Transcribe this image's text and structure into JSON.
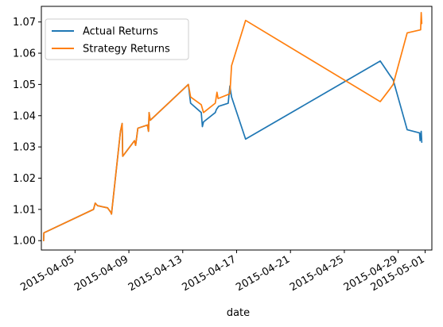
{
  "chart_data": {
    "type": "line",
    "title": "",
    "xlabel": "date",
    "ylabel": "",
    "x_ticks": [
      "2015-04-05",
      "2015-04-09",
      "2015-04-13",
      "2015-04-17",
      "2015-04-21",
      "2015-04-25",
      "2015-04-29",
      "2015-05-01"
    ],
    "y_ticks": [
      "1.00",
      "1.01",
      "1.02",
      "1.03",
      "1.04",
      "1.05",
      "1.06",
      "1.07"
    ],
    "xlim": [
      "2015-04-02T12:00",
      "2015-05-01T12:00"
    ],
    "ylim": [
      0.997,
      1.075
    ],
    "legend_position": "upper-left",
    "grid": false,
    "series": [
      {
        "name": "Actual Returns",
        "color": "#1f77b4",
        "points": [
          [
            "2015-04-02T16:00",
            1.0
          ],
          [
            "2015-04-02T16:30",
            1.0025
          ],
          [
            "2015-04-06T09:00",
            1.01
          ],
          [
            "2015-04-06T12:00",
            1.012
          ],
          [
            "2015-04-06T16:00",
            1.0112
          ],
          [
            "2015-04-07T10:00",
            1.0105
          ],
          [
            "2015-04-07T16:00",
            1.009
          ],
          [
            "2015-04-07T17:00",
            1.0085
          ],
          [
            "2015-04-08T09:00",
            1.035
          ],
          [
            "2015-04-08T12:00",
            1.0375
          ],
          [
            "2015-04-08T13:00",
            1.027
          ],
          [
            "2015-04-09T10:00",
            1.032
          ],
          [
            "2015-04-09T12:00",
            1.0305
          ],
          [
            "2015-04-09T16:00",
            1.036
          ],
          [
            "2015-04-10T09:00",
            1.037
          ],
          [
            "2015-04-10T11:00",
            1.035
          ],
          [
            "2015-04-10T12:00",
            1.041
          ],
          [
            "2015-04-10T14:00",
            1.0385
          ],
          [
            "2015-04-13T10:00",
            1.05
          ],
          [
            "2015-04-13T14:00",
            1.044
          ],
          [
            "2015-04-14T09:00",
            1.041
          ],
          [
            "2015-04-14T11:00",
            1.0365
          ],
          [
            "2015-04-14T13:00",
            1.038
          ],
          [
            "2015-04-15T10:00",
            1.041
          ],
          [
            "2015-04-15T12:00",
            1.042
          ],
          [
            "2015-04-15T16:00",
            1.043
          ],
          [
            "2015-04-16T09:00",
            1.044
          ],
          [
            "2015-04-16T12:00",
            1.0495
          ],
          [
            "2015-04-16T15:00",
            1.046
          ],
          [
            "2015-04-17T16:00",
            1.0325
          ],
          [
            "2015-04-27T16:00",
            1.0575
          ],
          [
            "2015-04-28T09:00",
            1.053
          ],
          [
            "2015-04-28T15:00",
            1.0515
          ],
          [
            "2015-04-29T16:00",
            1.0355
          ],
          [
            "2015-04-30T14:00",
            1.0345
          ],
          [
            "2015-04-30T15:00",
            1.032
          ],
          [
            "2015-04-30T17:00",
            1.035
          ],
          [
            "2015-04-30T18:00",
            1.0315
          ]
        ]
      },
      {
        "name": "Strategy Returns",
        "color": "#ff7f0e",
        "points": [
          [
            "2015-04-02T16:00",
            1.0
          ],
          [
            "2015-04-02T16:30",
            1.0025
          ],
          [
            "2015-04-06T09:00",
            1.01
          ],
          [
            "2015-04-06T12:00",
            1.012
          ],
          [
            "2015-04-06T16:00",
            1.0112
          ],
          [
            "2015-04-07T10:00",
            1.0105
          ],
          [
            "2015-04-07T16:00",
            1.009
          ],
          [
            "2015-04-07T17:00",
            1.0085
          ],
          [
            "2015-04-08T09:00",
            1.035
          ],
          [
            "2015-04-08T12:00",
            1.0375
          ],
          [
            "2015-04-08T13:00",
            1.027
          ],
          [
            "2015-04-09T10:00",
            1.032
          ],
          [
            "2015-04-09T12:00",
            1.0305
          ],
          [
            "2015-04-09T16:00",
            1.036
          ],
          [
            "2015-04-10T09:00",
            1.037
          ],
          [
            "2015-04-10T11:00",
            1.035
          ],
          [
            "2015-04-10T12:00",
            1.041
          ],
          [
            "2015-04-10T14:00",
            1.0385
          ],
          [
            "2015-04-13T10:00",
            1.05
          ],
          [
            "2015-04-13T14:00",
            1.046
          ],
          [
            "2015-04-14T09:00",
            1.0435
          ],
          [
            "2015-04-14T13:00",
            1.041
          ],
          [
            "2015-04-15T10:00",
            1.044
          ],
          [
            "2015-04-15T13:00",
            1.0475
          ],
          [
            "2015-04-15T15:00",
            1.0455
          ],
          [
            "2015-04-16T12:00",
            1.047
          ],
          [
            "2015-04-16T15:00",
            1.056
          ],
          [
            "2015-04-17T16:00",
            1.0705
          ],
          [
            "2015-04-27T16:00",
            1.0445
          ],
          [
            "2015-04-28T09:00",
            1.0485
          ],
          [
            "2015-04-28T15:00",
            1.05
          ],
          [
            "2015-04-29T16:00",
            1.0665
          ],
          [
            "2015-04-30T16:00",
            1.0675
          ],
          [
            "2015-04-30T17:00",
            1.073
          ],
          [
            "2015-04-30T18:00",
            1.0695
          ]
        ]
      }
    ]
  }
}
